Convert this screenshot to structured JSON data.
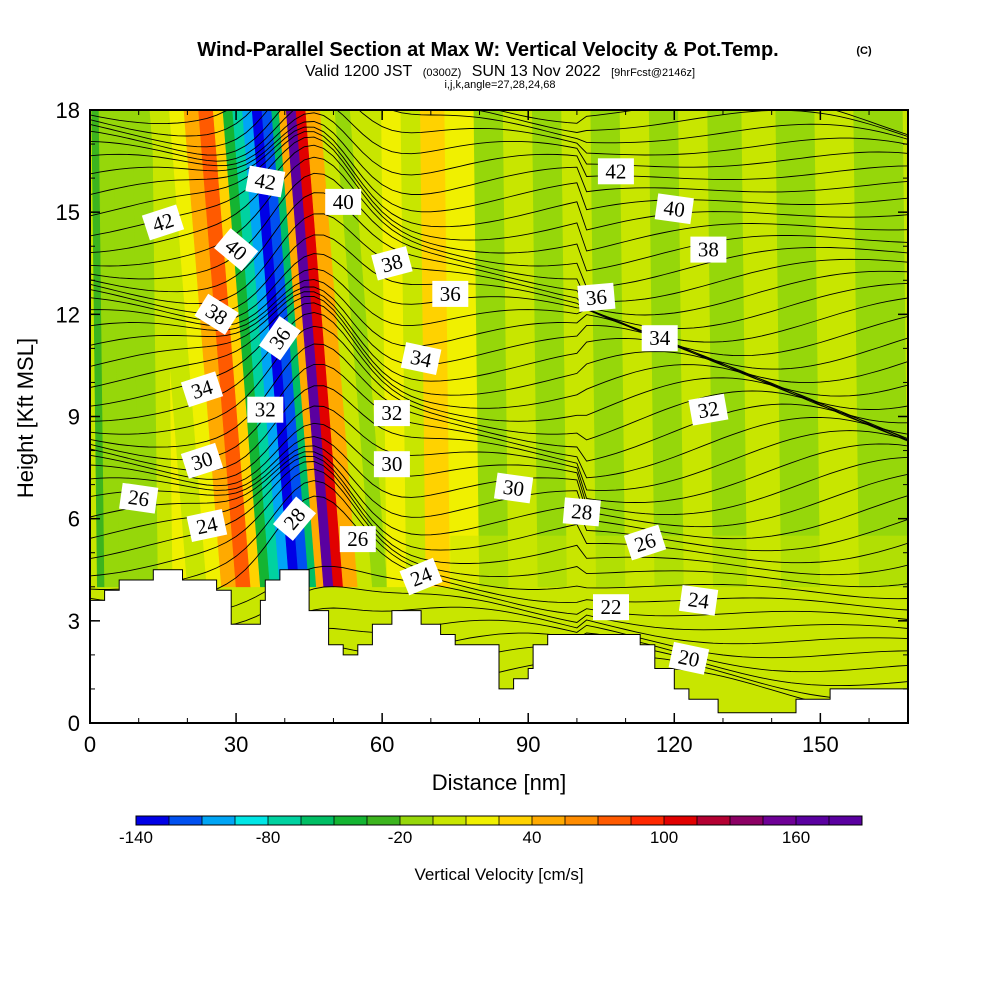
{
  "header": {
    "title": "Wind-Parallel Section at Max W: Vertical Velocity & Pot.Temp.",
    "copyright": "(C)",
    "valid_a": "Valid 1200 JST",
    "valid_zulu": "(0300Z)",
    "valid_b": "SUN 13 Nov 2022",
    "forecast": "[9hrFcst@2146z]",
    "indices": "i,j,k,angle=27,28,24,68"
  },
  "chart_data": {
    "type": "heatmap",
    "xlabel": "Distance [nm]",
    "ylabel": "Height [Kft MSL]",
    "xlim": [
      0,
      168
    ],
    "ylim": [
      0,
      18
    ],
    "x_ticks": [
      "0",
      "30",
      "60",
      "90",
      "120",
      "150"
    ],
    "y_ticks": [
      "0",
      "3",
      "6",
      "9",
      "12",
      "15",
      "18"
    ],
    "x_tick_values": [
      0,
      30,
      60,
      90,
      120,
      150
    ],
    "y_tick_values": [
      0,
      3,
      6,
      9,
      12,
      15,
      18
    ],
    "background_field": {
      "name": "Vertical Velocity",
      "units": "cm/s",
      "value_columns": [
        {
          "x": 0,
          "w": -5
        },
        {
          "x": 1.5,
          "w": -35
        },
        {
          "x": 3,
          "w": -15
        },
        {
          "x": 6,
          "w": -10
        },
        {
          "x": 10,
          "w": -10
        },
        {
          "x": 14,
          "w": 5
        },
        {
          "x": 17,
          "w": 10
        },
        {
          "x": 20,
          "w": 5
        },
        {
          "x": 24,
          "w": 15
        },
        {
          "x": 27,
          "w": 45
        },
        {
          "x": 30,
          "w": 75
        },
        {
          "x": 33,
          "w": 35
        },
        {
          "x": 35,
          "w": -45
        },
        {
          "x": 37,
          "w": -75
        },
        {
          "x": 39,
          "w": -100
        },
        {
          "x": 41,
          "w": -130
        },
        {
          "x": 43,
          "w": -115
        },
        {
          "x": 45,
          "w": -60
        },
        {
          "x": 46.5,
          "w": 40
        },
        {
          "x": 48,
          "w": 175
        },
        {
          "x": 50,
          "w": 110
        },
        {
          "x": 52,
          "w": 40
        },
        {
          "x": 55,
          "w": 5
        },
        {
          "x": 58,
          "w": -10
        },
        {
          "x": 61,
          "w": 10
        },
        {
          "x": 65,
          "w": -5
        },
        {
          "x": 69,
          "w": 25
        },
        {
          "x": 71,
          "w": 35
        },
        {
          "x": 74,
          "w": 10
        },
        {
          "x": 80,
          "w": -10
        },
        {
          "x": 86,
          "w": 0
        },
        {
          "x": 92,
          "w": -15
        },
        {
          "x": 98,
          "w": -5
        },
        {
          "x": 104,
          "w": -15
        },
        {
          "x": 110,
          "w": 5
        },
        {
          "x": 116,
          "w": -15
        },
        {
          "x": 122,
          "w": 5
        },
        {
          "x": 128,
          "w": -15
        },
        {
          "x": 135,
          "w": 5
        },
        {
          "x": 142,
          "w": -10
        },
        {
          "x": 150,
          "w": 5
        },
        {
          "x": 158,
          "w": -10
        },
        {
          "x": 168,
          "w": -10
        }
      ],
      "lower_level_field": {
        "below_kft": 5.5,
        "w": 5
      }
    },
    "terrain": [
      [
        0,
        3.6
      ],
      [
        3,
        3.6
      ],
      [
        3,
        3.9
      ],
      [
        6,
        3.9
      ],
      [
        6,
        4.2
      ],
      [
        13,
        4.2
      ],
      [
        13,
        4.5
      ],
      [
        19,
        4.5
      ],
      [
        19,
        4.2
      ],
      [
        26,
        4.2
      ],
      [
        26,
        3.9
      ],
      [
        29,
        3.9
      ],
      [
        29,
        2.9
      ],
      [
        35,
        2.9
      ],
      [
        35,
        3.6
      ],
      [
        36,
        3.6
      ],
      [
        36,
        4.2
      ],
      [
        39,
        4.2
      ],
      [
        39,
        4.5
      ],
      [
        45,
        4.5
      ],
      [
        45,
        3.3
      ],
      [
        49,
        3.3
      ],
      [
        49,
        2.3
      ],
      [
        52,
        2.3
      ],
      [
        52,
        2.0
      ],
      [
        55,
        2.0
      ],
      [
        55,
        2.3
      ],
      [
        58,
        2.3
      ],
      [
        58,
        2.9
      ],
      [
        62,
        2.9
      ],
      [
        62,
        3.3
      ],
      [
        68,
        3.3
      ],
      [
        68,
        2.9
      ],
      [
        72,
        2.9
      ],
      [
        72,
        2.6
      ],
      [
        75,
        2.6
      ],
      [
        75,
        2.3
      ],
      [
        84,
        2.3
      ],
      [
        84,
        1.0
      ],
      [
        87,
        1.0
      ],
      [
        87,
        1.3
      ],
      [
        90,
        1.3
      ],
      [
        90,
        1.6
      ],
      [
        91,
        1.6
      ],
      [
        91,
        2.3
      ],
      [
        94,
        2.3
      ],
      [
        94,
        2.6
      ],
      [
        113,
        2.6
      ],
      [
        113,
        2.3
      ],
      [
        116,
        2.3
      ],
      [
        116,
        1.6
      ],
      [
        120,
        1.6
      ],
      [
        120,
        1.0
      ],
      [
        123,
        1.0
      ],
      [
        123,
        0.7
      ],
      [
        129,
        0.7
      ],
      [
        129,
        0.3
      ],
      [
        145,
        0.3
      ],
      [
        145,
        0.7
      ],
      [
        152,
        0.7
      ],
      [
        152,
        1.0
      ],
      [
        168,
        1.0
      ]
    ],
    "contour_field": {
      "name": "Potential Temperature",
      "levels": [
        20,
        22,
        24,
        26,
        28,
        30,
        32,
        34,
        36,
        38,
        40,
        42
      ],
      "labels": [
        {
          "text": "42",
          "x": 15,
          "y": 14.7,
          "rot": 18
        },
        {
          "text": "42",
          "x": 36,
          "y": 15.9,
          "rot": -10
        },
        {
          "text": "40",
          "x": 30,
          "y": 13.9,
          "rot": -40
        },
        {
          "text": "38",
          "x": 26,
          "y": 12.0,
          "rot": -32
        },
        {
          "text": "36",
          "x": 39,
          "y": 11.3,
          "rot": 55
        },
        {
          "text": "34",
          "x": 23,
          "y": 9.8,
          "rot": 18
        },
        {
          "text": "32",
          "x": 36,
          "y": 9.2,
          "rot": 0
        },
        {
          "text": "30",
          "x": 23,
          "y": 7.7,
          "rot": 18
        },
        {
          "text": "26",
          "x": 10,
          "y": 6.6,
          "rot": -8
        },
        {
          "text": "24",
          "x": 24,
          "y": 5.8,
          "rot": 12
        },
        {
          "text": "28",
          "x": 42,
          "y": 6.0,
          "rot": 50
        },
        {
          "text": "40",
          "x": 52,
          "y": 15.3,
          "rot": 0
        },
        {
          "text": "38",
          "x": 62,
          "y": 13.5,
          "rot": 15
        },
        {
          "text": "36",
          "x": 74,
          "y": 12.6,
          "rot": 0
        },
        {
          "text": "34",
          "x": 68,
          "y": 10.7,
          "rot": -12
        },
        {
          "text": "32",
          "x": 62,
          "y": 9.1,
          "rot": 0
        },
        {
          "text": "30",
          "x": 62,
          "y": 7.6,
          "rot": 0
        },
        {
          "text": "26",
          "x": 55,
          "y": 5.4,
          "rot": 0
        },
        {
          "text": "24",
          "x": 68,
          "y": 4.3,
          "rot": 22
        },
        {
          "text": "30",
          "x": 87,
          "y": 6.9,
          "rot": -8
        },
        {
          "text": "28",
          "x": 101,
          "y": 6.2,
          "rot": -5
        },
        {
          "text": "26",
          "x": 114,
          "y": 5.3,
          "rot": 18
        },
        {
          "text": "22",
          "x": 107,
          "y": 3.4,
          "rot": 0
        },
        {
          "text": "24",
          "x": 125,
          "y": 3.6,
          "rot": -8
        },
        {
          "text": "20",
          "x": 123,
          "y": 1.9,
          "rot": -12
        },
        {
          "text": "42",
          "x": 108,
          "y": 16.2,
          "rot": 0
        },
        {
          "text": "40",
          "x": 120,
          "y": 15.1,
          "rot": -8
        },
        {
          "text": "38",
          "x": 127,
          "y": 13.9,
          "rot": 0
        },
        {
          "text": "36",
          "x": 104,
          "y": 12.5,
          "rot": 5
        },
        {
          "text": "34",
          "x": 117,
          "y": 11.3,
          "rot": 0
        },
        {
          "text": "32",
          "x": 127,
          "y": 9.2,
          "rot": 10
        }
      ]
    },
    "colorbar": {
      "label": "Vertical Velocity [cm/s]",
      "tick_labels": [
        "-140",
        "-80",
        "-20",
        "40",
        "100",
        "160"
      ],
      "tick_values": [
        -140,
        -80,
        -20,
        40,
        100,
        160
      ],
      "boundaries": [
        -140,
        -125,
        -110,
        -95,
        -80,
        -65,
        -50,
        -35,
        -20,
        -5,
        10,
        25,
        40,
        55,
        70,
        85,
        100,
        115,
        130,
        145,
        160,
        175,
        190
      ],
      "colors": [
        "#0000e6",
        "#0050f0",
        "#00a5f5",
        "#00e6e6",
        "#00d2a0",
        "#00be64",
        "#14b432",
        "#3cb41e",
        "#96d70a",
        "#c8e600",
        "#f0f000",
        "#ffd200",
        "#ffaa00",
        "#ff8c00",
        "#ff5a00",
        "#ff2800",
        "#e10000",
        "#b40032",
        "#8c0064",
        "#6e0096",
        "#5a00a0",
        "#5a00a0"
      ]
    }
  }
}
